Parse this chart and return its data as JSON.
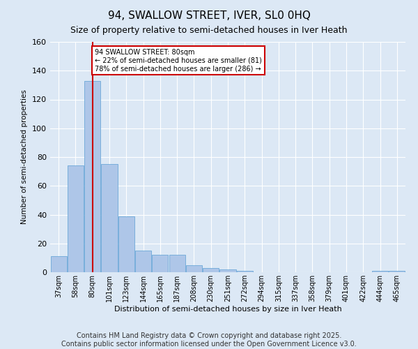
{
  "title": "94, SWALLOW STREET, IVER, SL0 0HQ",
  "subtitle": "Size of property relative to semi-detached houses in Iver Heath",
  "xlabel": "Distribution of semi-detached houses by size in Iver Heath",
  "ylabel": "Number of semi-detached properties",
  "categories": [
    "37sqm",
    "58sqm",
    "80sqm",
    "101sqm",
    "123sqm",
    "144sqm",
    "165sqm",
    "187sqm",
    "208sqm",
    "230sqm",
    "251sqm",
    "272sqm",
    "294sqm",
    "315sqm",
    "337sqm",
    "358sqm",
    "379sqm",
    "401sqm",
    "422sqm",
    "444sqm",
    "465sqm"
  ],
  "values": [
    11,
    74,
    133,
    75,
    39,
    15,
    12,
    12,
    5,
    3,
    2,
    1,
    0,
    0,
    0,
    0,
    0,
    0,
    0,
    1,
    1
  ],
  "bar_color": "#aec6e8",
  "bar_edge_color": "#5a9fd4",
  "highlight_bar_index": 2,
  "red_line_color": "#cc0000",
  "annotation_text": "94 SWALLOW STREET: 80sqm\n← 22% of semi-detached houses are smaller (81)\n78% of semi-detached houses are larger (286) →",
  "annotation_box_color": "#ffffff",
  "annotation_box_edge": "#cc0000",
  "ylim": [
    0,
    160
  ],
  "yticks": [
    0,
    20,
    40,
    60,
    80,
    100,
    120,
    140,
    160
  ],
  "footer_line1": "Contains HM Land Registry data © Crown copyright and database right 2025.",
  "footer_line2": "Contains public sector information licensed under the Open Government Licence v3.0.",
  "background_color": "#dce8f5",
  "plot_bg_color": "#dce8f5",
  "grid_color": "#ffffff",
  "title_fontsize": 11,
  "subtitle_fontsize": 9,
  "footer_fontsize": 7
}
